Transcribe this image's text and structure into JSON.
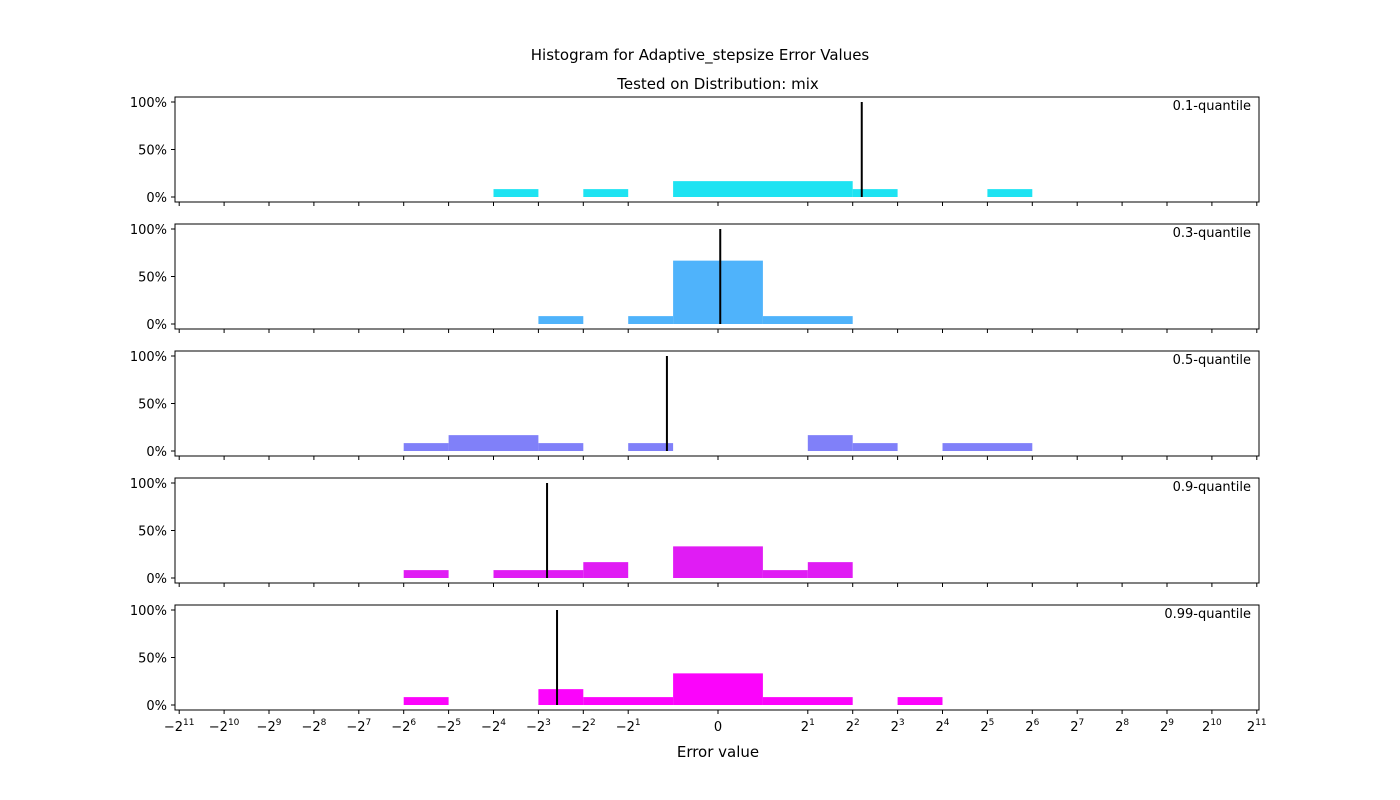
{
  "chart_data": {
    "type": "bar",
    "title": "Histogram for Adaptive_stepsize Error Values",
    "subtitle": "Tested on Distribution: mix",
    "xlabel": "Error value",
    "x_scale": "symlog base 2",
    "yticks": [
      "0%",
      "50%",
      "100%"
    ],
    "ylim": [
      0,
      100
    ],
    "xticks": [
      {
        "v": -2048,
        "base": "−2",
        "exp": "11"
      },
      {
        "v": -1024,
        "base": "−2",
        "exp": "10"
      },
      {
        "v": -512,
        "base": "−2",
        "exp": "9"
      },
      {
        "v": -256,
        "base": "−2",
        "exp": "8"
      },
      {
        "v": -128,
        "base": "−2",
        "exp": "7"
      },
      {
        "v": -64,
        "base": "−2",
        "exp": "6"
      },
      {
        "v": -32,
        "base": "−2",
        "exp": "5"
      },
      {
        "v": -16,
        "base": "−2",
        "exp": "4"
      },
      {
        "v": -8,
        "base": "−2",
        "exp": "3"
      },
      {
        "v": -4,
        "base": "−2",
        "exp": "2"
      },
      {
        "v": -2,
        "base": "−2",
        "exp": "1"
      },
      {
        "v": 0,
        "base": "0",
        "exp": ""
      },
      {
        "v": 2,
        "base": "2",
        "exp": "1"
      },
      {
        "v": 4,
        "base": "2",
        "exp": "2"
      },
      {
        "v": 8,
        "base": "2",
        "exp": "3"
      },
      {
        "v": 16,
        "base": "2",
        "exp": "4"
      },
      {
        "v": 32,
        "base": "2",
        "exp": "5"
      },
      {
        "v": 64,
        "base": "2",
        "exp": "6"
      },
      {
        "v": 128,
        "base": "2",
        "exp": "7"
      },
      {
        "v": 256,
        "base": "2",
        "exp": "8"
      },
      {
        "v": 512,
        "base": "2",
        "exp": "9"
      },
      {
        "v": 1024,
        "base": "2",
        "exp": "10"
      },
      {
        "v": 2048,
        "base": "2",
        "exp": "11"
      }
    ],
    "panels": [
      {
        "label": "0.1-quantile",
        "color": "#1ee3f2",
        "marker": 4.6,
        "bins": [
          {
            "from": -16,
            "to": -8,
            "pct": 8.3
          },
          {
            "from": -4,
            "to": -2,
            "pct": 8.3
          },
          {
            "from": -1,
            "to": 4,
            "pct": 16.7
          },
          {
            "from": 4,
            "to": 8,
            "pct": 8.3
          },
          {
            "from": 32,
            "to": 64,
            "pct": 8.3
          }
        ]
      },
      {
        "label": "0.3-quantile",
        "color": "#4fb3fb",
        "marker": 0.05,
        "bins": [
          {
            "from": -8,
            "to": -4,
            "pct": 8.3
          },
          {
            "from": -2,
            "to": -1,
            "pct": 8.3
          },
          {
            "from": -1,
            "to": 1,
            "pct": 66.7
          },
          {
            "from": 1,
            "to": 4,
            "pct": 8.3
          }
        ]
      },
      {
        "label": "0.5-quantile",
        "color": "#8080f9",
        "marker": -1.1,
        "bins": [
          {
            "from": -64,
            "to": -32,
            "pct": 8.3
          },
          {
            "from": -32,
            "to": -8,
            "pct": 16.7
          },
          {
            "from": -8,
            "to": -4,
            "pct": 8.3
          },
          {
            "from": -2,
            "to": -1,
            "pct": 8.3
          },
          {
            "from": 2,
            "to": 4,
            "pct": 16.7
          },
          {
            "from": 4,
            "to": 8,
            "pct": 8.3
          },
          {
            "from": 16,
            "to": 64,
            "pct": 8.3
          }
        ]
      },
      {
        "label": "0.9-quantile",
        "color": "#e01cf4",
        "marker": -7.0,
        "bins": [
          {
            "from": -64,
            "to": -32,
            "pct": 8.3
          },
          {
            "from": -16,
            "to": -4,
            "pct": 8.3
          },
          {
            "from": -4,
            "to": -2,
            "pct": 16.7
          },
          {
            "from": -1,
            "to": 1,
            "pct": 33.3
          },
          {
            "from": 1,
            "to": 2,
            "pct": 8.3
          },
          {
            "from": 2,
            "to": 4,
            "pct": 16.7
          }
        ]
      },
      {
        "label": "0.99-quantile",
        "color": "#fb04fb",
        "marker": -6.0,
        "bins": [
          {
            "from": -64,
            "to": -32,
            "pct": 8.3
          },
          {
            "from": -8,
            "to": -4,
            "pct": 16.7
          },
          {
            "from": -4,
            "to": -1,
            "pct": 8.3
          },
          {
            "from": -1,
            "to": 1,
            "pct": 33.3
          },
          {
            "from": 1,
            "to": 4,
            "pct": 8.3
          },
          {
            "from": 8,
            "to": 16,
            "pct": 8.3
          }
        ]
      }
    ]
  }
}
